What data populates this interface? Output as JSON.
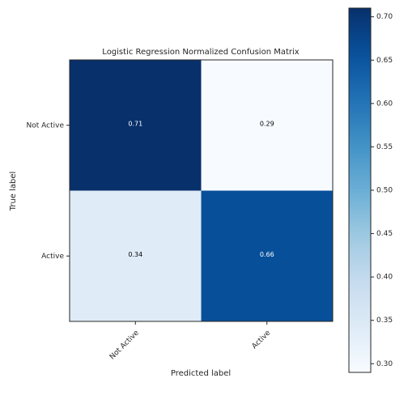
{
  "chart_data": {
    "type": "heatmap",
    "title": "Logistic Regression Normalized Confusion Matrix",
    "xlabel": "Predicted label",
    "ylabel": "True label",
    "x_categories": [
      "Not Active",
      "Active"
    ],
    "y_categories": [
      "Not Active",
      "Active"
    ],
    "values": [
      [
        0.71,
        0.29
      ],
      [
        0.34,
        0.66
      ]
    ],
    "value_labels": [
      [
        "0.71",
        "0.29"
      ],
      [
        "0.34",
        "0.66"
      ]
    ],
    "colormap": "Blues",
    "colorbar": {
      "range": [
        0.29,
        0.71
      ],
      "ticks": [
        0.3,
        0.35,
        0.4,
        0.45,
        0.5,
        0.55,
        0.6,
        0.65,
        0.7
      ],
      "tick_labels": [
        "0.30",
        "0.35",
        "0.40",
        "0.45",
        "0.50",
        "0.55",
        "0.60",
        "0.65",
        "0.70"
      ]
    },
    "colors": {
      "low": "#f7fbff",
      "high": "#08306b",
      "light_text": "#ffffff",
      "dark_text": "#000000"
    }
  }
}
